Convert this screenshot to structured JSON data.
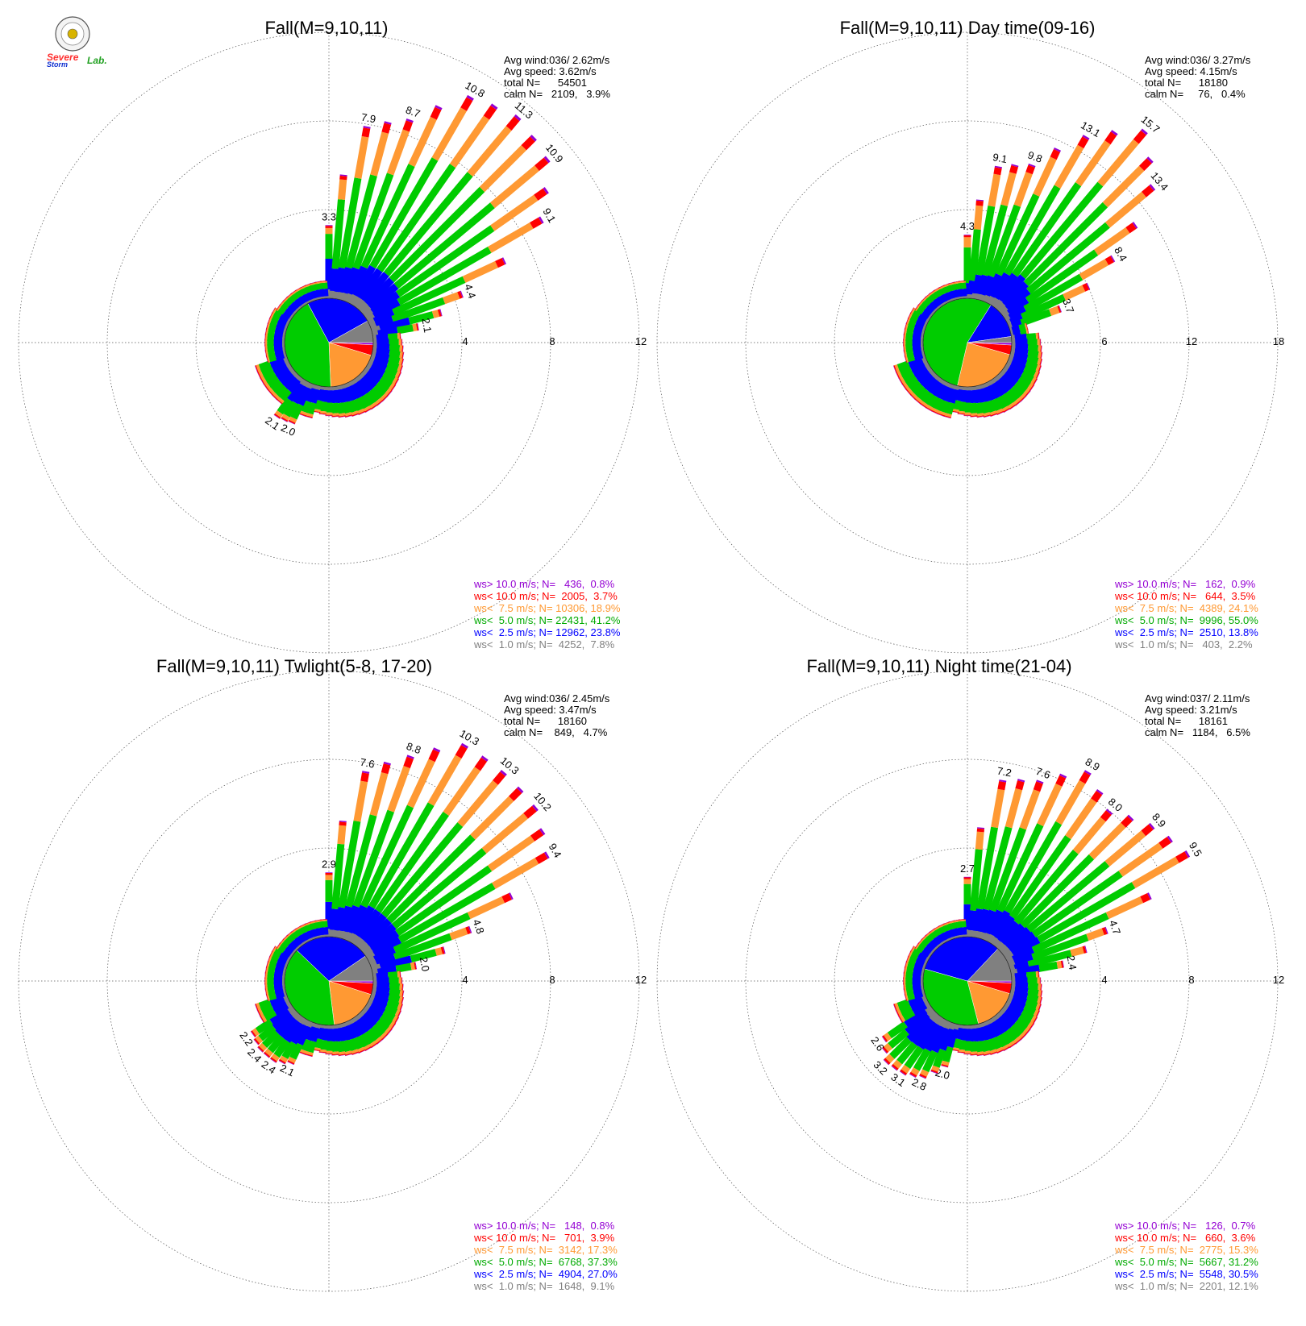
{
  "colors": {
    "gt10": "#9400d3",
    "lt10": "#ff0000",
    "lt7_5": "#ff9933",
    "lt5": "#00cc00",
    "lt2_5": "#0000ff",
    "lt1": "#808080"
  },
  "logo": {
    "line1": "Severe",
    "line2": "Storm",
    "line3": "Lab."
  },
  "chart_data": [
    {
      "type": "windrose",
      "title": "Fall(M=9,10,11)",
      "ring_labels": [
        "4",
        "8",
        "12"
      ],
      "rmax": 12,
      "stats": {
        "avg_wind": "Avg wind:036/ 2.62m/s",
        "avg_speed": "Avg speed: 3.62m/s",
        "total": "total N=      54501",
        "calm": "calm N=   2109,   3.9%"
      },
      "legend": [
        {
          "key": "gt10",
          "text": "ws> 10.0 m/s; N=   436,  0.8%"
        },
        {
          "key": "lt10",
          "text": "ws< 10.0 m/s; N=  2005,  3.7%"
        },
        {
          "key": "lt7_5",
          "text": "ws<  7.5 m/s; N= 10306, 18.9%"
        },
        {
          "key": "lt5",
          "text": "ws<  5.0 m/s; N= 22431, 41.2%"
        },
        {
          "key": "lt2_5",
          "text": "ws<  2.5 m/s; N= 12962, 23.8%"
        },
        {
          "key": "lt1",
          "text": "ws<  1.0 m/s; N=  4252,  7.8%"
        }
      ],
      "pie": [
        0.8,
        3.7,
        18.9,
        41.2,
        23.8,
        7.8
      ],
      "labeled_bars": [
        {
          "dir": 0,
          "value": 3.3,
          "label": "3.3"
        },
        {
          "dir": 10,
          "value": 7.9,
          "label": "7.9"
        },
        {
          "dir": 20,
          "value": 8.7,
          "label": "8.7"
        },
        {
          "dir": 30,
          "value": 10.8,
          "label": "10.8"
        },
        {
          "dir": 40,
          "value": 11.3,
          "label": "11.3"
        },
        {
          "dir": 50,
          "value": 10.9,
          "label": "10.9"
        },
        {
          "dir": 60,
          "value": 9.1,
          "label": "9.1"
        },
        {
          "dir": 70,
          "value": 4.4,
          "label": "4.4"
        },
        {
          "dir": 80,
          "value": 2.1,
          "label": "2.1"
        },
        {
          "dir": 205,
          "value": 2.0,
          "label": "2.0"
        },
        {
          "dir": 215,
          "value": 2.1,
          "label": "2.1"
        }
      ]
    },
    {
      "type": "windrose",
      "title": "Fall(M=9,10,11) Day time(09-16)",
      "ring_labels": [
        "6",
        "12",
        "18"
      ],
      "rmax": 18,
      "stats": {
        "avg_wind": "Avg wind:036/ 3.27m/s",
        "avg_speed": "Avg speed: 4.15m/s",
        "total": "total N=      18180",
        "calm": "calm N=     76,   0.4%"
      },
      "legend": [
        {
          "key": "gt10",
          "text": "ws> 10.0 m/s; N=   162,  0.9%"
        },
        {
          "key": "lt10",
          "text": "ws< 10.0 m/s; N=   644,  3.5%"
        },
        {
          "key": "lt7_5",
          "text": "ws<  7.5 m/s; N=  4389, 24.1%"
        },
        {
          "key": "lt5",
          "text": "ws<  5.0 m/s; N=  9996, 55.0%"
        },
        {
          "key": "lt2_5",
          "text": "ws<  2.5 m/s; N=  2510, 13.8%"
        },
        {
          "key": "lt1",
          "text": "ws<  1.0 m/s; N=   403,  2.2%"
        }
      ],
      "pie": [
        0.9,
        3.5,
        24.1,
        55.0,
        13.8,
        2.2
      ],
      "labeled_bars": [
        {
          "dir": 0,
          "value": 4.3,
          "label": "4.3"
        },
        {
          "dir": 10,
          "value": 9.1,
          "label": "9.1"
        },
        {
          "dir": 20,
          "value": 9.8,
          "label": "9.8"
        },
        {
          "dir": 30,
          "value": 13.1,
          "label": "13.1"
        },
        {
          "dir": 40,
          "value": 15.7,
          "label": "15.7"
        },
        {
          "dir": 50,
          "value": 13.4,
          "label": "13.4"
        },
        {
          "dir": 60,
          "value": 8.4,
          "label": "8.4"
        },
        {
          "dir": 70,
          "value": 3.7,
          "label": "3.7"
        }
      ]
    },
    {
      "type": "windrose",
      "title": "Fall(M=9,10,11) Twlight(5-8, 17-20)",
      "ring_labels": [
        "4",
        "8",
        "12"
      ],
      "rmax": 12,
      "stats": {
        "avg_wind": "Avg wind:036/ 2.45m/s",
        "avg_speed": "Avg speed: 3.47m/s",
        "total": "total N=      18160",
        "calm": "calm N=    849,   4.7%"
      },
      "legend": [
        {
          "key": "gt10",
          "text": "ws> 10.0 m/s; N=   148,  0.8%"
        },
        {
          "key": "lt10",
          "text": "ws< 10.0 m/s; N=   701,  3.9%"
        },
        {
          "key": "lt7_5",
          "text": "ws<  7.5 m/s; N=  3142, 17.3%"
        },
        {
          "key": "lt5",
          "text": "ws<  5.0 m/s; N=  6768, 37.3%"
        },
        {
          "key": "lt2_5",
          "text": "ws<  2.5 m/s; N=  4904, 27.0%"
        },
        {
          "key": "lt1",
          "text": "ws<  1.0 m/s; N=  1648,  9.1%"
        }
      ],
      "pie": [
        0.8,
        3.9,
        17.3,
        37.3,
        27.0,
        9.1
      ],
      "labeled_bars": [
        {
          "dir": 0,
          "value": 2.9,
          "label": "2.9"
        },
        {
          "dir": 10,
          "value": 7.6,
          "label": "7.6"
        },
        {
          "dir": 20,
          "value": 8.8,
          "label": "8.8"
        },
        {
          "dir": 30,
          "value": 10.3,
          "label": "10.3"
        },
        {
          "dir": 40,
          "value": 10.3,
          "label": "10.3"
        },
        {
          "dir": 50,
          "value": 10.2,
          "label": "10.2"
        },
        {
          "dir": 60,
          "value": 9.4,
          "label": "9.4"
        },
        {
          "dir": 70,
          "value": 4.8,
          "label": "4.8"
        },
        {
          "dir": 80,
          "value": 2.0,
          "label": "2.0"
        },
        {
          "dir": 205,
          "value": 2.1,
          "label": "2.1"
        },
        {
          "dir": 215,
          "value": 2.4,
          "label": "2.4"
        },
        {
          "dir": 225,
          "value": 2.4,
          "label": "2.4"
        },
        {
          "dir": 235,
          "value": 2.2,
          "label": "2.2"
        }
      ]
    },
    {
      "type": "windrose",
      "title": "Fall(M=9,10,11) Night time(21-04)",
      "ring_labels": [
        "4",
        "8",
        "12"
      ],
      "rmax": 12,
      "stats": {
        "avg_wind": "Avg wind:037/ 2.11m/s",
        "avg_speed": "Avg speed: 3.21m/s",
        "total": "total N=      18161",
        "calm": "calm N=   1184,   6.5%"
      },
      "legend": [
        {
          "key": "gt10",
          "text": "ws> 10.0 m/s; N=   126,  0.7%"
        },
        {
          "key": "lt10",
          "text": "ws< 10.0 m/s; N=   660,  3.6%"
        },
        {
          "key": "lt7_5",
          "text": "ws<  7.5 m/s; N=  2775, 15.3%"
        },
        {
          "key": "lt5",
          "text": "ws<  5.0 m/s; N=  5667, 31.2%"
        },
        {
          "key": "lt2_5",
          "text": "ws<  2.5 m/s; N=  5548, 30.5%"
        },
        {
          "key": "lt1",
          "text": "ws<  1.0 m/s; N=  2201, 12.1%"
        }
      ],
      "pie": [
        0.7,
        3.6,
        15.3,
        31.2,
        30.5,
        12.1
      ],
      "labeled_bars": [
        {
          "dir": 0,
          "value": 2.7,
          "label": "2.7"
        },
        {
          "dir": 10,
          "value": 7.2,
          "label": "7.2"
        },
        {
          "dir": 20,
          "value": 7.6,
          "label": "7.6"
        },
        {
          "dir": 30,
          "value": 8.9,
          "label": "8.9"
        },
        {
          "dir": 40,
          "value": 8.0,
          "label": "8.0"
        },
        {
          "dir": 50,
          "value": 8.9,
          "label": "8.9"
        },
        {
          "dir": 60,
          "value": 9.5,
          "label": "9.5"
        },
        {
          "dir": 70,
          "value": 4.7,
          "label": "4.7"
        },
        {
          "dir": 80,
          "value": 2.4,
          "label": "2.4"
        },
        {
          "dir": 195,
          "value": 2.0,
          "label": "2.0"
        },
        {
          "dir": 205,
          "value": 2.8,
          "label": "2.8"
        },
        {
          "dir": 215,
          "value": 3.1,
          "label": "3.1"
        },
        {
          "dir": 225,
          "value": 3.2,
          "label": "3.2"
        },
        {
          "dir": 235,
          "value": 2.6,
          "label": "2.6"
        }
      ]
    }
  ]
}
